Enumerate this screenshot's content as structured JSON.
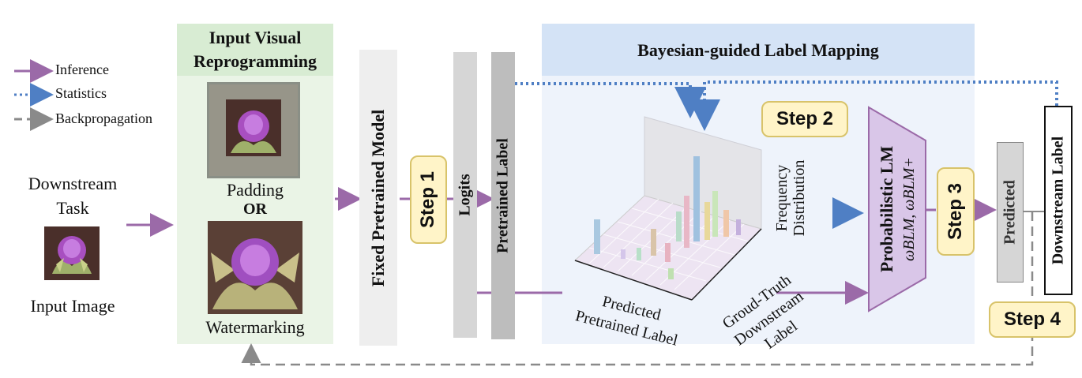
{
  "legend": {
    "inference": "Inference",
    "statistics": "Statistics",
    "backpropagation": "Backpropagation"
  },
  "input": {
    "task_line1": "Downstream",
    "task_line2": "Task",
    "image_label": "Input Image"
  },
  "ivr": {
    "title_line1": "Input Visual",
    "title_line2": "Reprogramming",
    "padding": "Padding",
    "or": "OR",
    "watermarking": "Watermarking"
  },
  "model": {
    "fixed_model": "Fixed Pretrained Model",
    "logits": "Logits",
    "pretrained_label": "Pretrained Label"
  },
  "blm": {
    "title": "Bayesian-guided Label Mapping",
    "freq_line1": "Frequency",
    "freq_line2": "Distribution",
    "axis_pred_line1": "Predicted",
    "axis_pred_line2": "Pretrained Label",
    "axis_gt_line1": "Groud-Truth",
    "axis_gt_line2": "Downstream Label"
  },
  "lm": {
    "title": "Probabilistic LM",
    "formula": "ωBLM, ωBLM+"
  },
  "output": {
    "predicted": "Predicted",
    "downstream_label": "Downstream Label"
  },
  "steps": {
    "step1": "Step 1",
    "step2": "Step 2",
    "step3": "Step 3",
    "step4": "Step 4"
  },
  "colors": {
    "inference_arrow": "#9b6aa8",
    "statistics_arrow": "#4f7fc4",
    "backprop_arrow": "#8a8a8a",
    "lm_fill": "#d9c6e8",
    "ivr_panel": "#eaf4e6",
    "blm_panel": "#eef3fb",
    "step_fill": "#fff4c8"
  }
}
